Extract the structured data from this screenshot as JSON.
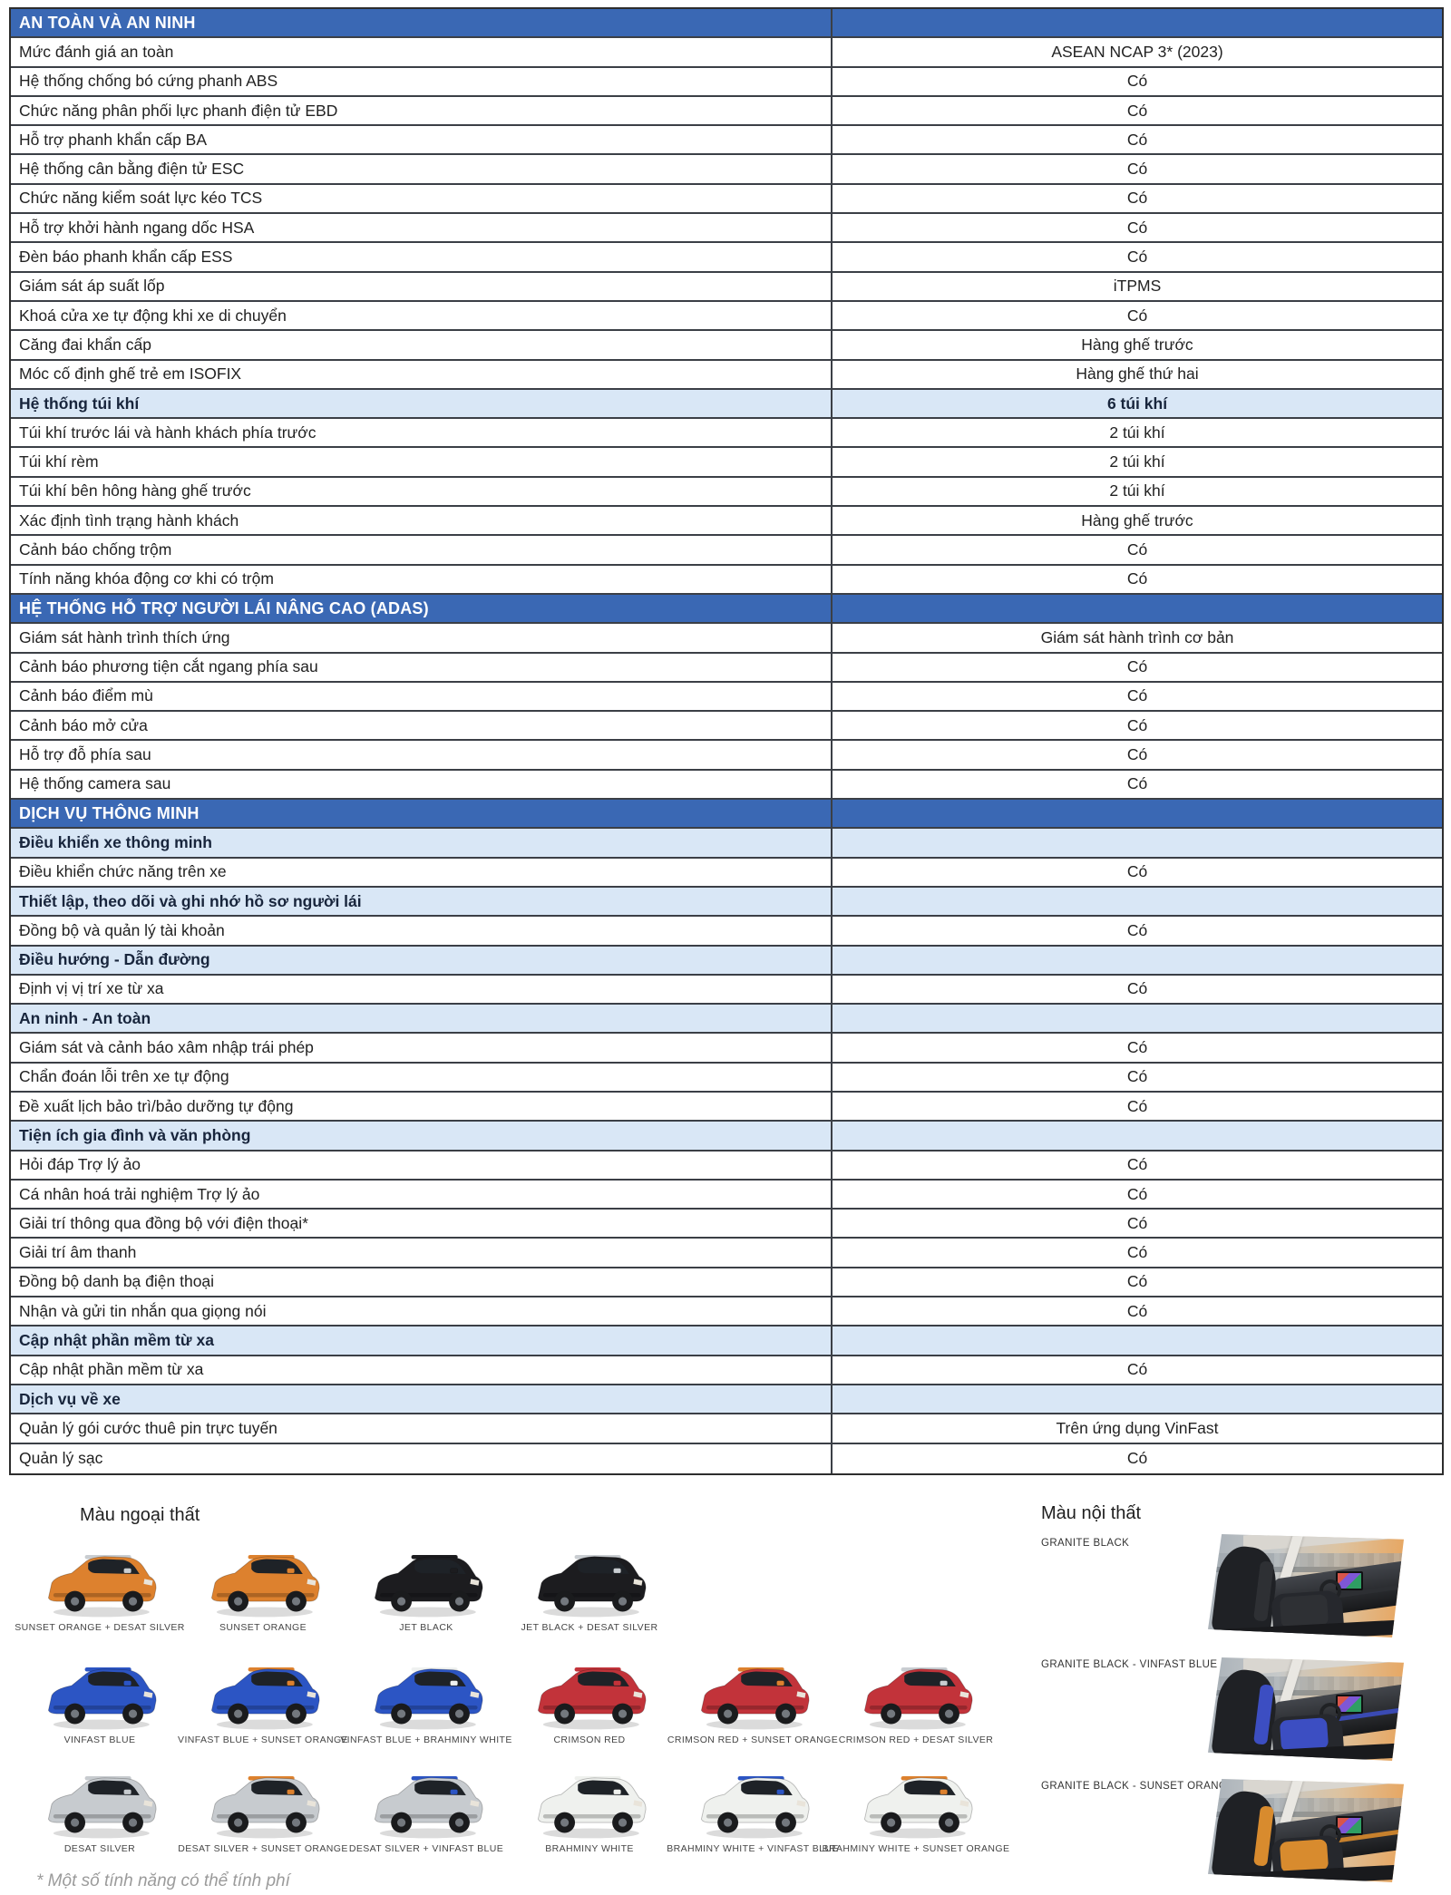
{
  "colors": {
    "header_bg": "#3A68B4",
    "subheader_bg": "#D9E7F6",
    "border": "#3b3f46"
  },
  "table": {
    "rows": [
      {
        "type": "section",
        "label": "AN TOÀN VÀ AN NINH",
        "value": ""
      },
      {
        "type": "row",
        "label": "Mức đánh giá an toàn",
        "value": "ASEAN NCAP 3* (2023)"
      },
      {
        "type": "row",
        "label": "Hệ thống chống bó cứng phanh ABS",
        "value": "Có"
      },
      {
        "type": "row",
        "label": "Chức năng phân phối lực phanh điện tử EBD",
        "value": "Có"
      },
      {
        "type": "row",
        "label": "Hỗ trợ phanh khẩn cấp BA",
        "value": "Có"
      },
      {
        "type": "row",
        "label": "Hệ thống cân bằng điện tử ESC",
        "value": "Có"
      },
      {
        "type": "row",
        "label": "Chức năng kiểm soát lực kéo TCS",
        "value": "Có"
      },
      {
        "type": "row",
        "label": "Hỗ trợ khởi hành ngang dốc HSA",
        "value": "Có"
      },
      {
        "type": "row",
        "label": "Đèn báo phanh khẩn cấp ESS",
        "value": "Có"
      },
      {
        "type": "row",
        "label": "Giám sát áp suất lốp",
        "value": "iTPMS"
      },
      {
        "type": "row",
        "label": "Khoá cửa xe tự động khi xe di chuyển",
        "value": "Có"
      },
      {
        "type": "row",
        "label": "Căng đai khẩn cấp",
        "value": "Hàng ghế trước"
      },
      {
        "type": "row",
        "label": "Móc cố định ghế trẻ em ISOFIX",
        "value": "Hàng ghế thứ hai"
      },
      {
        "type": "subheader",
        "label": "Hệ thống túi khí",
        "value": "6 túi khí"
      },
      {
        "type": "row",
        "label": "Túi khí trước lái và hành khách phía trước",
        "value": "2 túi khí"
      },
      {
        "type": "row",
        "label": "Túi khí rèm",
        "value": "2 túi khí"
      },
      {
        "type": "row",
        "label": "Túi khí bên hông hàng ghế trước",
        "value": "2 túi khí"
      },
      {
        "type": "row",
        "label": "Xác định tình trạng hành khách",
        "value": "Hàng ghế trước"
      },
      {
        "type": "row",
        "label": "Cảnh báo chống trộm",
        "value": "Có"
      },
      {
        "type": "row",
        "label": "Tính năng khóa động cơ khi có trộm",
        "value": "Có"
      },
      {
        "type": "section",
        "label": "HỆ THỐNG HỖ TRỢ NGƯỜI LÁI NÂNG CAO (ADAS)",
        "value": ""
      },
      {
        "type": "row",
        "label": "Giám sát hành trình thích ứng",
        "value": "Giám sát hành trình cơ bản"
      },
      {
        "type": "row",
        "label": "Cảnh báo phương tiện cắt ngang phía sau",
        "value": "Có"
      },
      {
        "type": "row",
        "label": "Cảnh báo điểm mù",
        "value": "Có"
      },
      {
        "type": "row",
        "label": "Cảnh báo mở cửa",
        "value": "Có"
      },
      {
        "type": "row",
        "label": "Hỗ trợ đỗ phía sau",
        "value": "Có"
      },
      {
        "type": "row",
        "label": "Hệ thống camera sau",
        "value": "Có"
      },
      {
        "type": "section",
        "label": "DỊCH VỤ THÔNG MINH",
        "value": ""
      },
      {
        "type": "subheader",
        "label": "Điều khiển xe thông minh",
        "value": ""
      },
      {
        "type": "row",
        "label": "Điều khiển chức năng trên xe",
        "value": "Có"
      },
      {
        "type": "subheader",
        "label": "Thiết lập, theo dõi và ghi nhớ hồ sơ người lái",
        "value": ""
      },
      {
        "type": "row",
        "label": "Đồng bộ và quản lý tài khoản",
        "value": "Có"
      },
      {
        "type": "subheader",
        "label": "Điều hướng - Dẫn đường",
        "value": ""
      },
      {
        "type": "row",
        "label": "Định vị vị trí xe từ xa",
        "value": "Có"
      },
      {
        "type": "subheader",
        "label": "An ninh - An toàn",
        "value": ""
      },
      {
        "type": "row",
        "label": "Giám sát và cảnh báo xâm nhập trái phép",
        "value": "Có"
      },
      {
        "type": "row",
        "label": "Chẩn đoán lỗi trên xe tự động",
        "value": "Có"
      },
      {
        "type": "row",
        "label": "Đề xuất lịch bảo trì/bảo dưỡng tự động",
        "value": "Có"
      },
      {
        "type": "subheader",
        "label": "Tiện ích gia đình và văn phòng",
        "value": ""
      },
      {
        "type": "row",
        "label": "Hỏi đáp Trợ lý ảo",
        "value": "Có"
      },
      {
        "type": "row",
        "label": "Cá nhân hoá trải nghiệm Trợ lý ảo",
        "value": "Có"
      },
      {
        "type": "row",
        "label": "Giải trí thông qua đồng bộ với điện thoại*",
        "value": "Có"
      },
      {
        "type": "row",
        "label": "Giải trí âm thanh",
        "value": "Có"
      },
      {
        "type": "row",
        "label": "Đồng bộ danh bạ điện thoại",
        "value": "Có"
      },
      {
        "type": "row",
        "label": "Nhận và gửi tin nhắn qua giọng nói",
        "value": "Có"
      },
      {
        "type": "subheader",
        "label": "Cập nhật phần mềm từ xa",
        "value": ""
      },
      {
        "type": "row",
        "label": "Cập nhật phần mềm từ xa",
        "value": "Có"
      },
      {
        "type": "subheader",
        "label": "Dịch vụ về xe",
        "value": ""
      },
      {
        "type": "row",
        "label": "Quản lý gói cước thuê pin trực tuyến",
        "value": "Trên ứng dụng VinFast"
      },
      {
        "type": "row",
        "label": "Quản lý sạc",
        "value": "Có"
      }
    ]
  },
  "exterior": {
    "title": "Màu ngoại thất",
    "rows": [
      [
        {
          "label": "SUNSET ORANGE + DESAT SILVER",
          "body": "#DD812E",
          "accent": "#C9CDD1"
        },
        {
          "label": "SUNSET ORANGE",
          "body": "#DD812E",
          "accent": "#DD812E"
        },
        {
          "label": "JET BLACK",
          "body": "#1C1C1F",
          "accent": "#1C1C1F"
        },
        {
          "label": "JET BLACK + DESAT SILVER",
          "body": "#1C1C1F",
          "accent": "#C9CDD1"
        }
      ],
      [
        {
          "label": "VINFAST BLUE",
          "body": "#2C55C4",
          "accent": "#2C55C4"
        },
        {
          "label": "VINFAST BLUE + SUNSET ORANGE",
          "body": "#2C55C4",
          "accent": "#DD812E"
        },
        {
          "label": "VINFAST BLUE + BRAHMINY WHITE",
          "body": "#2C55C4",
          "accent": "#EFF1F0"
        },
        {
          "label": "CRIMSON RED",
          "body": "#C2333A",
          "accent": "#C2333A"
        },
        {
          "label": "CRIMSON RED + SUNSET ORANGE",
          "body": "#C2333A",
          "accent": "#DD812E"
        },
        {
          "label": "CRIMSON RED + DESAT SILVER",
          "body": "#C2333A",
          "accent": "#C9CDD1"
        }
      ],
      [
        {
          "label": "DESAT SILVER",
          "body": "#C7CBCF",
          "accent": "#C7CBCF"
        },
        {
          "label": "DESAT SILVER + SUNSET ORANGE",
          "body": "#C7CBCF",
          "accent": "#DD812E"
        },
        {
          "label": "DESAT SILVER + VINFAST BLUE",
          "body": "#C7CBCF",
          "accent": "#2C55C4"
        },
        {
          "label": "BRAHMINY WHITE",
          "body": "#EFF1EE",
          "accent": "#EFF1EE"
        },
        {
          "label": "BRAHMINY WHITE + VINFAST BLUE",
          "body": "#EFF1EE",
          "accent": "#2C55C4"
        },
        {
          "label": "BRAHMINY WHITE + SUNSET ORANGE",
          "body": "#EFF1EE",
          "accent": "#DD812E"
        }
      ]
    ]
  },
  "interior": {
    "title": "Màu nội thất",
    "items": [
      {
        "label": "GRANITE BLACK",
        "accent": "#2e3034"
      },
      {
        "label": "GRANITE BLACK - VINFAST BLUE",
        "accent": "#3c4ec2"
      },
      {
        "label": "GRANITE BLACK - SUNSET ORANGE",
        "accent": "#d88b2e"
      }
    ]
  },
  "footnote": "* Một số tính năng có thể tính phí"
}
